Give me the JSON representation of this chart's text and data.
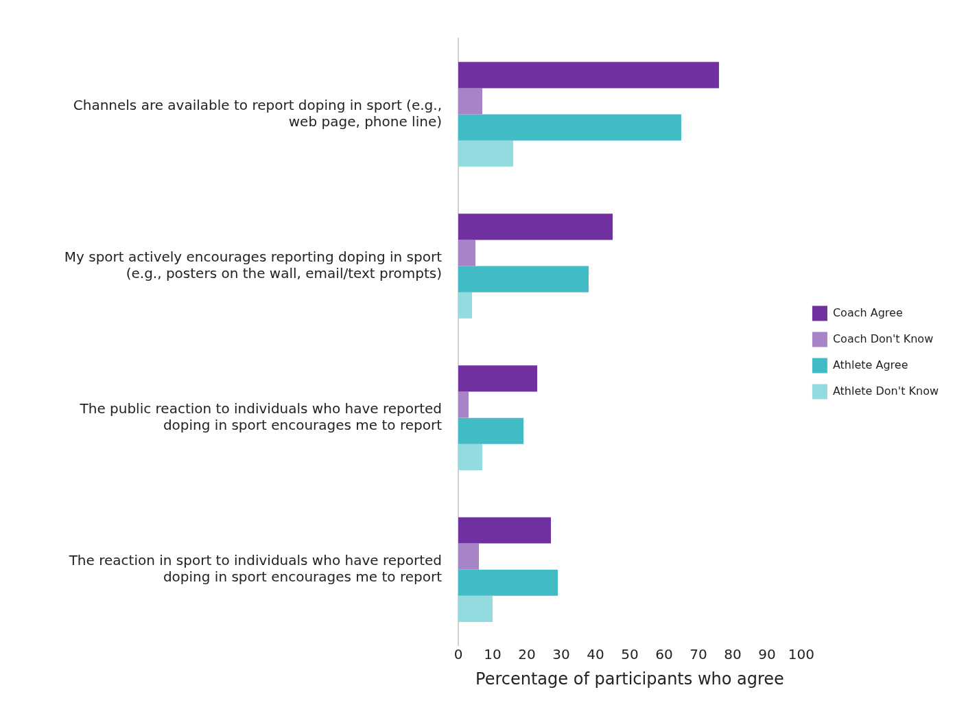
{
  "chart_data": {
    "type": "bar",
    "orientation": "horizontal",
    "xlabel": "Percentage of participants who agree",
    "categories": [
      "Channels are available to report doping in sport (e.g., web page, phone line)",
      "My sport actively encourages reporting doping in sport (e.g., posters on the wall, email/text prompts)",
      "The public reaction to individuals who have reported doping in sport encourages me to report",
      "The reaction in sport to individuals who have reported doping in sport encourages me to report"
    ],
    "series": [
      {
        "name": "Coach Agree",
        "color": "#7030a0",
        "values": [
          76,
          45,
          23,
          27
        ]
      },
      {
        "name": "Coach Don't Know",
        "color": "#a784c6",
        "values": [
          7,
          5,
          3,
          6
        ]
      },
      {
        "name": "Athlete Agree",
        "color": "#41bcc4",
        "values": [
          65,
          38,
          19,
          29
        ]
      },
      {
        "name": "Athlete Don't Know",
        "color": "#94dbe0",
        "values": [
          16,
          4,
          7,
          10
        ]
      }
    ],
    "xlim": [
      0,
      100
    ],
    "xticks": [
      0,
      10,
      20,
      30,
      40,
      50,
      60,
      70,
      80,
      90,
      100
    ],
    "grid": false,
    "legend": "right"
  }
}
